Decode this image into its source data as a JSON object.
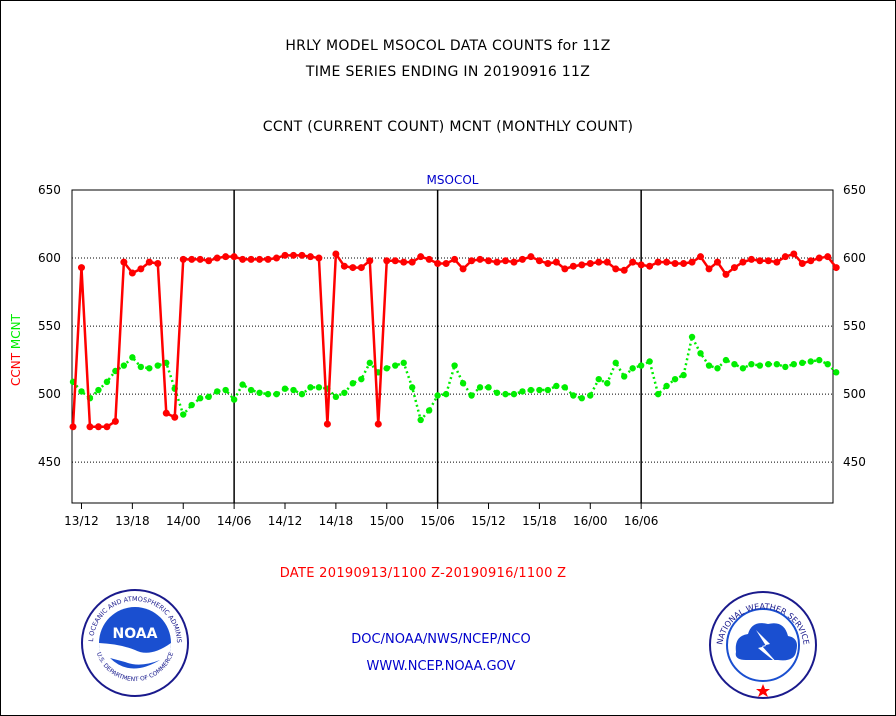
{
  "header": {
    "line1": "HRLY MODEL MSOCOL DATA COUNTS for 11Z",
    "line2": "TIME SERIES ENDING IN 20190916 11Z",
    "line3": "CCNT (CURRENT COUNT) MCNT (MONTHLY COUNT)"
  },
  "footer": {
    "date_range": "DATE 20190913/1100 Z-20190916/1100 Z",
    "org": "DOC/NOAA/NWS/NCEP/NCO",
    "url": "WWW.NCEP.NOAA.GOV"
  },
  "logos": {
    "noaa": "NOAA",
    "noaa_ring_text": "NATIONAL OCEANIC AND ATMOSPHERIC ADMINISTRATION",
    "noaa_ring_bottom": "U.S. DEPARTMENT OF COMMERCE",
    "nws_ring_text": "NATIONAL WEATHER SERVICE"
  },
  "colors": {
    "ccnt": "#ff0000",
    "mcnt": "#00ee00",
    "axis": "#000000",
    "label_blue": "#0000cc"
  },
  "chart_data": {
    "type": "line",
    "title": "MSOCOL",
    "ylabel_ccnt": "CCNT",
    "ylabel_mcnt": "MCNT",
    "ylim": [
      420,
      650
    ],
    "yticks": [
      450,
      500,
      550,
      600,
      650
    ],
    "xticks": [
      "13/12",
      "13/18",
      "14/00",
      "14/06",
      "14/12",
      "14/18",
      "15/00",
      "15/06",
      "15/12",
      "15/18",
      "16/00",
      "16/06"
    ],
    "grid": true,
    "series": [
      {
        "name": "CCNT",
        "color": "#ff0000",
        "values": [
          476,
          593,
          476,
          476,
          476,
          480,
          597,
          589,
          592,
          597,
          596,
          486,
          483,
          599,
          599,
          599,
          598,
          600,
          601,
          601,
          599,
          599,
          599,
          599,
          600,
          602,
          602,
          602,
          601,
          600,
          478,
          603,
          594,
          593,
          593,
          598,
          478,
          598,
          598,
          597,
          597,
          601,
          599,
          596,
          596,
          599,
          592,
          598,
          599,
          598,
          597,
          598,
          597,
          599,
          601,
          598,
          596,
          597,
          592,
          594,
          595,
          596,
          597,
          597,
          592,
          591,
          597,
          595,
          594,
          597,
          597,
          596,
          596,
          597,
          601,
          592,
          597,
          588,
          593,
          597,
          599,
          598,
          598,
          597,
          601,
          603,
          596,
          598,
          600,
          601,
          593
        ]
      },
      {
        "name": "MCNT",
        "color": "#00ee00",
        "values": [
          509,
          502,
          497,
          503,
          509,
          517,
          521,
          527,
          520,
          519,
          521,
          523,
          504,
          485,
          492,
          497,
          498,
          502,
          503,
          496,
          507,
          503,
          501,
          500,
          500,
          504,
          503,
          500,
          505,
          505,
          504,
          498,
          501,
          508,
          511,
          523,
          516,
          519,
          521,
          523,
          505,
          481,
          488,
          499,
          500,
          521,
          508,
          499,
          505,
          505,
          501,
          500,
          500,
          502,
          503,
          503,
          503,
          506,
          505,
          499,
          497,
          499,
          511,
          508,
          523,
          513,
          519,
          521,
          524,
          500,
          506,
          511,
          514,
          542,
          530,
          521,
          519,
          525,
          522,
          519,
          522,
          521,
          522,
          522,
          520,
          522,
          523,
          524,
          525,
          522,
          516
        ]
      }
    ]
  }
}
